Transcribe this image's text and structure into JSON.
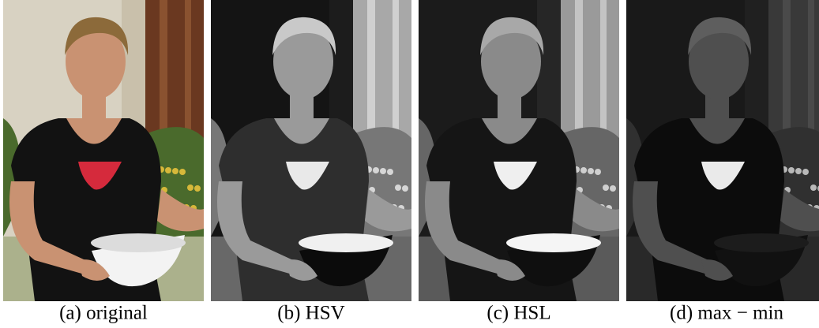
{
  "panels": [
    {
      "caption": "(a) original"
    },
    {
      "caption": "(b) HSV"
    },
    {
      "caption": "(c) HSL"
    },
    {
      "caption": "(d) max − min"
    }
  ]
}
